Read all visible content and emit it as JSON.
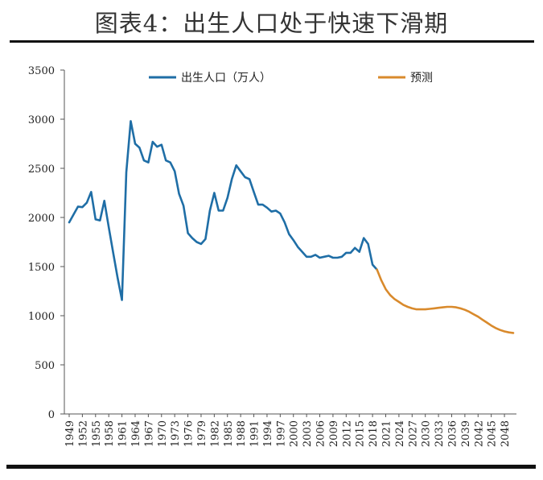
{
  "title": "图表4：出生人口处于快速下滑期",
  "chart_data": {
    "type": "line",
    "ylim": [
      0,
      3500
    ],
    "yticks": [
      0,
      500,
      1000,
      1500,
      2000,
      2500,
      3000,
      3500
    ],
    "xlim": [
      1949,
      2050
    ],
    "xtick_labels": [
      1949,
      1952,
      1955,
      1958,
      1961,
      1964,
      1967,
      1970,
      1973,
      1976,
      1979,
      1982,
      1985,
      1988,
      1991,
      1994,
      1997,
      2000,
      2003,
      2006,
      2009,
      2012,
      2015,
      2018,
      2021,
      2024,
      2027,
      2030,
      2033,
      2036,
      2039,
      2042,
      2045,
      2048
    ],
    "legend_position": "top",
    "grid": false,
    "series": [
      {
        "name": "出生人口（万人）",
        "color": "#1f6ea6",
        "x": [
          1949,
          1950,
          1951,
          1952,
          1953,
          1954,
          1955,
          1956,
          1957,
          1958,
          1959,
          1960,
          1961,
          1962,
          1963,
          1964,
          1965,
          1966,
          1967,
          1968,
          1969,
          1970,
          1971,
          1972,
          1973,
          1974,
          1975,
          1976,
          1977,
          1978,
          1979,
          1980,
          1981,
          1982,
          1983,
          1984,
          1985,
          1986,
          1987,
          1988,
          1989,
          1990,
          1991,
          1992,
          1993,
          1994,
          1995,
          1996,
          1997,
          1998,
          1999,
          2000,
          2001,
          2002,
          2003,
          2004,
          2005,
          2006,
          2007,
          2008,
          2009,
          2010,
          2011,
          2012,
          2013,
          2014,
          2015,
          2016,
          2017,
          2018,
          2019
        ],
        "values": [
          1950,
          2030,
          2110,
          2105,
          2150,
          2260,
          1980,
          1970,
          2170,
          1900,
          1640,
          1390,
          1160,
          2460,
          2980,
          2750,
          2710,
          2580,
          2560,
          2770,
          2720,
          2740,
          2580,
          2560,
          2470,
          2240,
          2120,
          1840,
          1790,
          1750,
          1730,
          1780,
          2070,
          2250,
          2070,
          2070,
          2200,
          2390,
          2530,
          2470,
          2410,
          2390,
          2260,
          2130,
          2130,
          2100,
          2060,
          2070,
          2040,
          1950,
          1830,
          1770,
          1700,
          1650,
          1600,
          1600,
          1620,
          1590,
          1600,
          1610,
          1590,
          1590,
          1600,
          1640,
          1640,
          1690,
          1650,
          1790,
          1730,
          1520,
          1470
        ]
      },
      {
        "name": "预测",
        "color": "#d98a2c",
        "x": [
          2019,
          2020,
          2021,
          2022,
          2023,
          2024,
          2025,
          2026,
          2027,
          2028,
          2029,
          2030,
          2031,
          2032,
          2033,
          2034,
          2035,
          2036,
          2037,
          2038,
          2039,
          2040,
          2041,
          2042,
          2043,
          2044,
          2045,
          2046,
          2047,
          2048,
          2049,
          2050
        ],
        "values": [
          1470,
          1360,
          1270,
          1210,
          1170,
          1140,
          1110,
          1090,
          1075,
          1065,
          1065,
          1065,
          1070,
          1075,
          1080,
          1085,
          1090,
          1090,
          1085,
          1075,
          1060,
          1040,
          1015,
          990,
          960,
          930,
          900,
          875,
          855,
          840,
          830,
          825
        ]
      }
    ]
  }
}
